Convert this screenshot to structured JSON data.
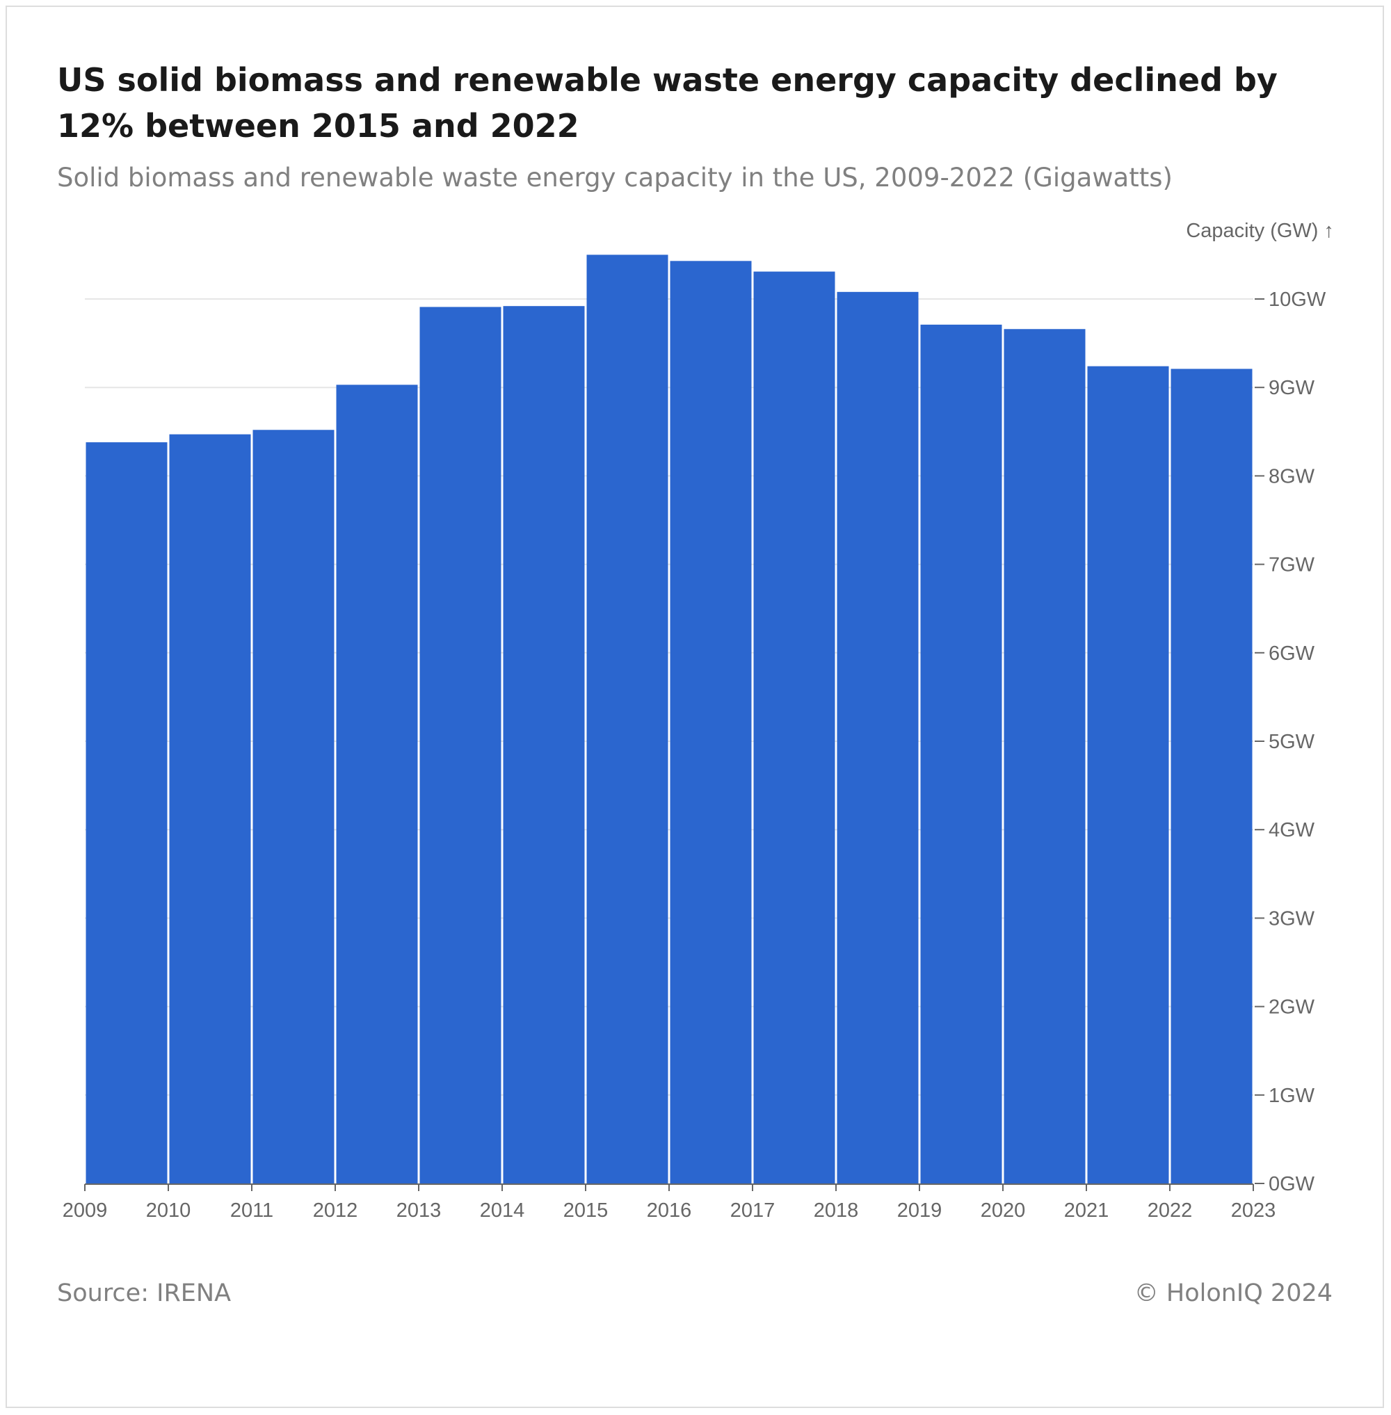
{
  "header": {
    "title": "US solid biomass and renewable waste energy capacity declined by 12% between 2015 and 2022",
    "subtitle": "Solid biomass and renewable waste energy capacity in the US, 2009-2022 (Gigawatts)"
  },
  "footer": {
    "source": "Source: IRENA",
    "copyright": "© HolonIQ 2024"
  },
  "chart_data": {
    "type": "bar",
    "title": "US solid biomass and renewable waste energy capacity declined by 12% between 2015 and 2022",
    "subtitle": "Solid biomass and renewable waste energy capacity in the US, 2009-2022 (Gigawatts)",
    "ylabel": "Capacity (GW) ↑",
    "xlabel": "",
    "bin_edges": [
      2009,
      2010,
      2011,
      2012,
      2013,
      2014,
      2015,
      2016,
      2017,
      2018,
      2019,
      2020,
      2021,
      2022,
      2023
    ],
    "categories": [
      "2009",
      "2010",
      "2011",
      "2012",
      "2013",
      "2014",
      "2015",
      "2016",
      "2017",
      "2018",
      "2019",
      "2020",
      "2021",
      "2022"
    ],
    "values": [
      8.38,
      8.47,
      8.52,
      9.03,
      9.91,
      9.92,
      10.5,
      10.43,
      10.31,
      10.08,
      9.71,
      9.66,
      9.24,
      9.21
    ],
    "ylim": [
      0,
      10.5
    ],
    "yticks": [
      0,
      1,
      2,
      3,
      4,
      5,
      6,
      7,
      8,
      9,
      10
    ],
    "ytick_labels": [
      "0GW",
      "1GW",
      "2GW",
      "3GW",
      "4GW",
      "5GW",
      "6GW",
      "7GW",
      "8GW",
      "9GW",
      "10GW"
    ],
    "xtick_labels": [
      "2009",
      "2010",
      "2011",
      "2012",
      "2013",
      "2014",
      "2015",
      "2016",
      "2017",
      "2018",
      "2019",
      "2020",
      "2021",
      "2022",
      "2023"
    ],
    "y_axis_side": "right",
    "grid": true,
    "bar_color": "#2b66cf",
    "grid_color": "#e6e6e6",
    "axis_color": "#666666"
  }
}
